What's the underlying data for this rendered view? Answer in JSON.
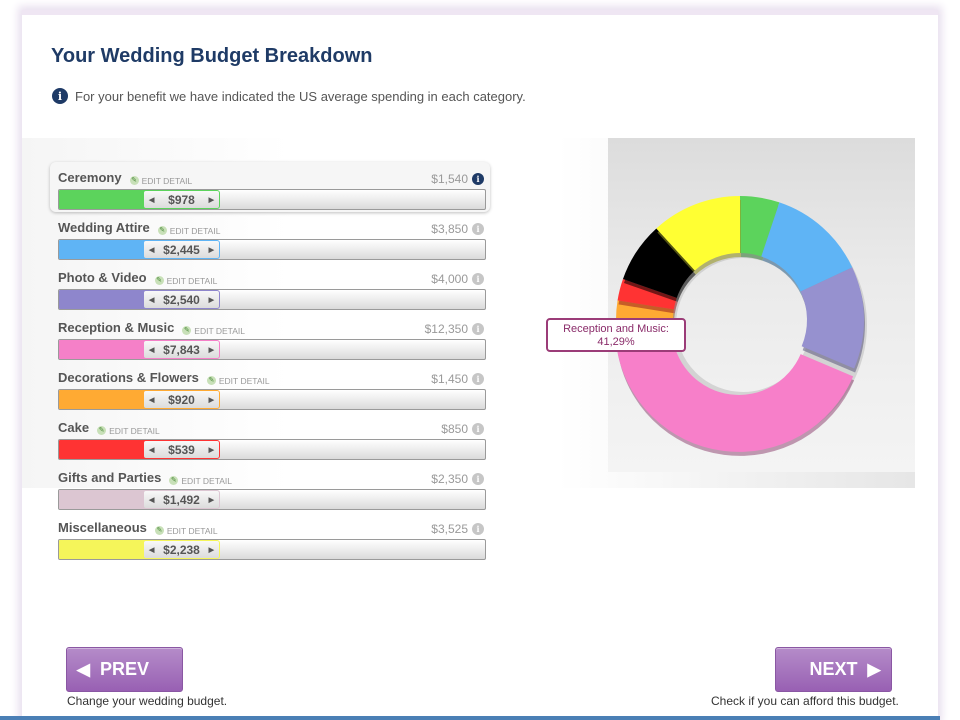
{
  "header": {
    "title": "Your Wedding Budget Breakdown",
    "info_text": "For your benefit we have indicated the US average spending in each category."
  },
  "edit_label": "EDIT DETAIL",
  "categories": [
    {
      "name": "Ceremony",
      "avg": "$1,540",
      "value": "$978",
      "fill_fraction": 0.2,
      "color": "#5cd35c",
      "active": true
    },
    {
      "name": "Wedding Attire",
      "avg": "$3,850",
      "value": "$2,445",
      "fill_fraction": 0.21,
      "color": "#5fb4f5"
    },
    {
      "name": "Photo & Video",
      "avg": "$4,000",
      "value": "$2,540",
      "fill_fraction": 0.21,
      "color": "#8e86cc"
    },
    {
      "name": "Reception & Music",
      "avg": "$12,350",
      "value": "$7,843",
      "fill_fraction": 0.21,
      "color": "#f580c8"
    },
    {
      "name": "Decorations & Flowers",
      "avg": "$1,450",
      "value": "$920",
      "fill_fraction": 0.21,
      "color": "#ffaa33"
    },
    {
      "name": "Cake",
      "avg": "$850",
      "value": "$539",
      "fill_fraction": 0.21,
      "color": "#ff3333"
    },
    {
      "name": "Gifts and Parties",
      "avg": "$2,350",
      "value": "$1,492",
      "fill_fraction": 0.21,
      "color": "#dcc6d2"
    },
    {
      "name": "Miscellaneous",
      "avg": "$3,525",
      "value": "$2,238",
      "fill_fraction": 0.21,
      "color": "#f5f55a"
    }
  ],
  "chart_data": {
    "type": "pie",
    "variant": "donut",
    "slices": [
      {
        "label": "Ceremony",
        "value": 978,
        "color": "#5cd35c"
      },
      {
        "label": "Wedding Attire",
        "value": 2445,
        "color": "#5fb4f5"
      },
      {
        "label": "Photo & Video",
        "value": 2540,
        "color": "#9691cf"
      },
      {
        "label": "Reception & Music",
        "value": 7843,
        "color": "#f77fc9",
        "exploded": true
      },
      {
        "label": "Decorations & Flowers",
        "value": 920,
        "color": "#ffaa33"
      },
      {
        "label": "Cake",
        "value": 539,
        "color": "#ff3333"
      },
      {
        "label": "Gifts and Parties",
        "value": 1492,
        "color": "#000000"
      },
      {
        "label": "Miscellaneous",
        "value": 2238,
        "color": "#ffff33"
      }
    ],
    "tooltip": {
      "line1": "Reception and Music:",
      "line2": "41,29%"
    }
  },
  "nav": {
    "prev_label": "PREV",
    "prev_caption": "Change your wedding budget.",
    "next_label": "NEXT",
    "next_caption": "Check if you can afford this budget."
  }
}
